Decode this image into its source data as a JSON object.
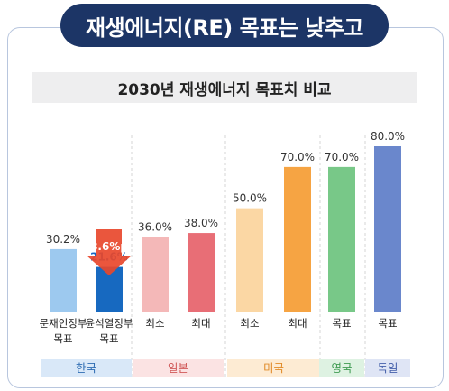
{
  "header": {
    "title": "재생에너지(RE) 목표는 낮추고"
  },
  "chart_data": {
    "type": "bar",
    "title": "2030년 재생에너지 목표치 비교",
    "ylim": [
      0,
      80
    ],
    "bars": [
      {
        "label_lines": [
          "문재인정부",
          "목표"
        ],
        "value": 30.2,
        "value_label": "30.2%",
        "color": "#9dc9ef",
        "label_color": "#333333"
      },
      {
        "label_lines": [
          "윤석열정부",
          "목표"
        ],
        "value": 21.6,
        "value_label": "21.6%",
        "color": "#1769c0",
        "label_color": "#1565c0"
      },
      {
        "label_lines": [
          "최소"
        ],
        "value": 36.0,
        "value_label": "36.0%",
        "color": "#f4b8b8",
        "label_color": "#333333"
      },
      {
        "label_lines": [
          "최대"
        ],
        "value": 38.0,
        "value_label": "38.0%",
        "color": "#e86e76",
        "label_color": "#333333"
      },
      {
        "label_lines": [
          "최소"
        ],
        "value": 50.0,
        "value_label": "50.0%",
        "color": "#fbd7a4",
        "label_color": "#333333"
      },
      {
        "label_lines": [
          "최대"
        ],
        "value": 70.0,
        "value_label": "70.0%",
        "color": "#f6a443",
        "label_color": "#333333"
      },
      {
        "label_lines": [
          "목표"
        ],
        "value": 70.0,
        "value_label": "70.0%",
        "color": "#78c888",
        "label_color": "#333333"
      },
      {
        "label_lines": [
          "목표"
        ],
        "value": 80.0,
        "value_label": "80.0%",
        "color": "#6a87cc",
        "label_color": "#333333"
      }
    ],
    "groups": [
      {
        "name": "한국",
        "bar_start": 0,
        "bar_end": 1,
        "bg": "#d9e8f8",
        "color": "#2f6db3"
      },
      {
        "name": "일본",
        "bar_start": 2,
        "bar_end": 3,
        "bg": "#fbe3e3",
        "color": "#d15a5a"
      },
      {
        "name": "미국",
        "bar_start": 4,
        "bar_end": 5,
        "bg": "#fdebd3",
        "color": "#e08b2a"
      },
      {
        "name": "영국",
        "bar_start": 6,
        "bar_end": 6,
        "bg": "#def2e2",
        "color": "#3f9b52"
      },
      {
        "name": "독일",
        "bar_start": 7,
        "bar_end": 7,
        "bg": "#dfe5f5",
        "color": "#4661ab"
      }
    ],
    "annotation": {
      "label": "8.6%p",
      "color": "#e8482c"
    }
  }
}
